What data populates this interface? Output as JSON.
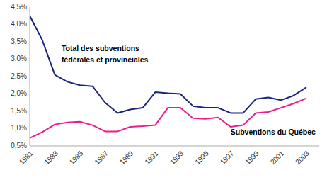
{
  "chart_data": {
    "type": "line",
    "x": [
      1981,
      1982,
      1983,
      1984,
      1985,
      1986,
      1987,
      1988,
      1989,
      1990,
      1991,
      1992,
      1993,
      1994,
      1995,
      1996,
      1997,
      1998,
      1999,
      2000,
      2001,
      2002,
      2003
    ],
    "series": [
      {
        "color": "#1a237e",
        "values": [
          4.25,
          3.55,
          2.55,
          2.35,
          2.25,
          2.22,
          1.75,
          1.45,
          1.55,
          1.6,
          2.05,
          2.02,
          2.0,
          1.65,
          1.6,
          1.6,
          1.45,
          1.45,
          1.85,
          1.9,
          1.82,
          1.95,
          2.18
        ]
      },
      {
        "color": "#e91e8c",
        "values": [
          0.73,
          0.9,
          1.12,
          1.18,
          1.2,
          1.1,
          0.92,
          0.92,
          1.05,
          1.07,
          1.1,
          1.6,
          1.6,
          1.3,
          1.28,
          1.32,
          1.05,
          1.1,
          1.45,
          1.48,
          1.6,
          1.72,
          1.87
        ]
      }
    ],
    "annotations": [
      "Total des subventions",
      "fédérales et provinciales",
      "Subventions du Québec"
    ],
    "xlim": [
      1981,
      2004
    ],
    "xticks": [
      1981,
      1983,
      1985,
      1987,
      1989,
      1991,
      1993,
      1995,
      1997,
      1999,
      2001,
      2003
    ],
    "ylim": [
      0.5,
      4.5
    ],
    "yticks": [
      {
        "value": 0.5,
        "label": "0,5%"
      },
      {
        "value": 1.0,
        "label": "1,0%"
      },
      {
        "value": 1.5,
        "label": "1,5%"
      },
      {
        "value": 2.0,
        "label": "2,0%"
      },
      {
        "value": 2.5,
        "label": "2,5%"
      },
      {
        "value": 3.0,
        "label": "3,0%"
      },
      {
        "value": 3.5,
        "label": "3,5%"
      },
      {
        "value": 4.0,
        "label": "4,0%"
      },
      {
        "value": 4.5,
        "label": "4,5%"
      }
    ],
    "grid": false
  }
}
